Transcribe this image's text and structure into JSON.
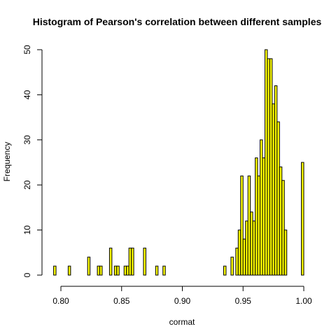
{
  "chart_data": {
    "type": "bar",
    "title": "Histogram of Pearson's correlation between different samples",
    "xlabel": "cormat",
    "ylabel": "Frequency",
    "xlim": [
      0.79,
      1.0
    ],
    "ylim": [
      0,
      50
    ],
    "x_ticks": [
      0.8,
      0.85,
      0.9,
      0.95,
      1.0
    ],
    "x_tick_labels": [
      "0.80",
      "0.85",
      "0.90",
      "0.95",
      "1.00"
    ],
    "y_ticks": [
      0,
      10,
      20,
      30,
      40,
      50
    ],
    "y_tick_labels": [
      "0",
      "10",
      "20",
      "30",
      "40",
      "50"
    ],
    "bin_width": 0.002,
    "grid": false,
    "colors": {
      "bar_fill": "#FFFF00",
      "bar_border": "#000000"
    },
    "bins": [
      {
        "x0": 0.794,
        "count": 2
      },
      {
        "x0": 0.806,
        "count": 2
      },
      {
        "x0": 0.822,
        "count": 4
      },
      {
        "x0": 0.83,
        "count": 2
      },
      {
        "x0": 0.832,
        "count": 2
      },
      {
        "x0": 0.84,
        "count": 6
      },
      {
        "x0": 0.844,
        "count": 2
      },
      {
        "x0": 0.846,
        "count": 2
      },
      {
        "x0": 0.852,
        "count": 2
      },
      {
        "x0": 0.854,
        "count": 2
      },
      {
        "x0": 0.856,
        "count": 6
      },
      {
        "x0": 0.858,
        "count": 6
      },
      {
        "x0": 0.868,
        "count": 6
      },
      {
        "x0": 0.878,
        "count": 2
      },
      {
        "x0": 0.884,
        "count": 2
      },
      {
        "x0": 0.934,
        "count": 2
      },
      {
        "x0": 0.94,
        "count": 4
      },
      {
        "x0": 0.944,
        "count": 6
      },
      {
        "x0": 0.946,
        "count": 10
      },
      {
        "x0": 0.948,
        "count": 22
      },
      {
        "x0": 0.95,
        "count": 8
      },
      {
        "x0": 0.952,
        "count": 12
      },
      {
        "x0": 0.954,
        "count": 22
      },
      {
        "x0": 0.956,
        "count": 14
      },
      {
        "x0": 0.958,
        "count": 12
      },
      {
        "x0": 0.96,
        "count": 26
      },
      {
        "x0": 0.962,
        "count": 22
      },
      {
        "x0": 0.964,
        "count": 30
      },
      {
        "x0": 0.966,
        "count": 26
      },
      {
        "x0": 0.968,
        "count": 50
      },
      {
        "x0": 0.97,
        "count": 48
      },
      {
        "x0": 0.972,
        "count": 48
      },
      {
        "x0": 0.974,
        "count": 38
      },
      {
        "x0": 0.976,
        "count": 42
      },
      {
        "x0": 0.978,
        "count": 34
      },
      {
        "x0": 0.98,
        "count": 24
      },
      {
        "x0": 0.982,
        "count": 21
      },
      {
        "x0": 0.984,
        "count": 10
      },
      {
        "x0": 0.998,
        "count": 25
      }
    ]
  }
}
